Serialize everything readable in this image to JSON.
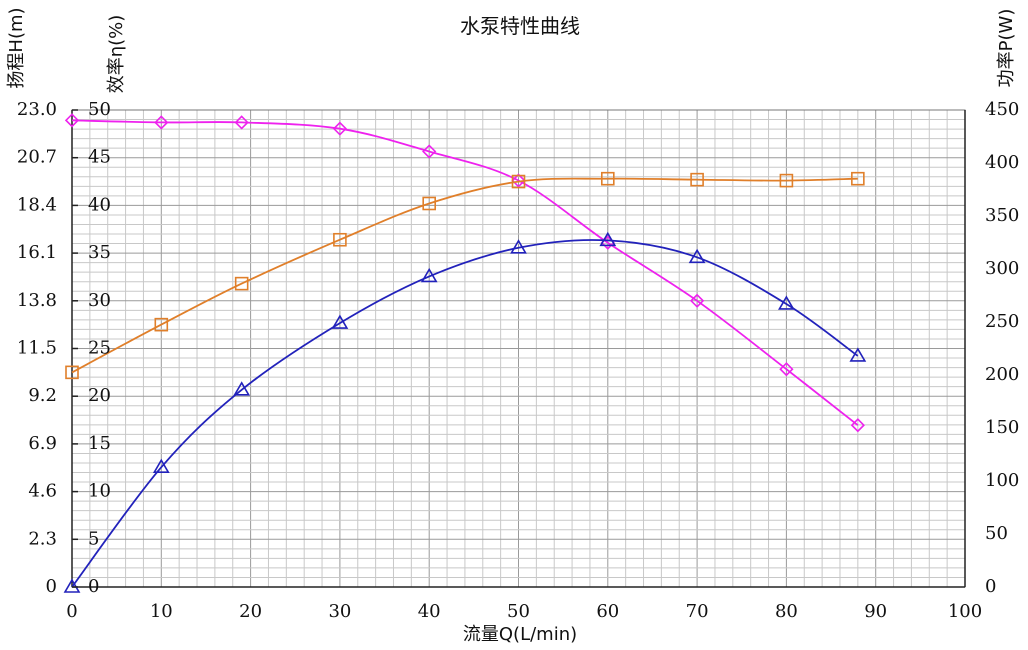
{
  "chart_data": {
    "type": "line",
    "title": "水泵特性曲线",
    "xlabel": "流量Q(L/min)",
    "ylabel_head": "扬程H(m)",
    "ylabel_eff": "效率η(%)",
    "ylabel_power": "功率P(W)",
    "xlim": [
      0,
      100
    ],
    "x_ticks": [
      "0",
      "10",
      "20",
      "30",
      "40",
      "50",
      "60",
      "70",
      "80",
      "90",
      "100"
    ],
    "head_axis": {
      "ylim": [
        0,
        23.0
      ],
      "ticks": [
        "0",
        "2.3",
        "4.6",
        "6.9",
        "9.2",
        "11.5",
        "13.8",
        "16.1",
        "18.4",
        "20.7",
        "23.0"
      ]
    },
    "eff_axis": {
      "ylim": [
        0,
        50
      ],
      "ticks": [
        "0",
        "5",
        "10",
        "15",
        "20",
        "25",
        "30",
        "35",
        "40",
        "45",
        "50"
      ]
    },
    "power_axis": {
      "ylim": [
        0,
        450
      ],
      "ticks": [
        "0",
        "50",
        "100",
        "150",
        "200",
        "250",
        "300",
        "350",
        "400",
        "450"
      ]
    },
    "grid": true,
    "series": [
      {
        "key": "head",
        "axis": "head",
        "color": "#ee22ee",
        "marker": "diamond",
        "x": [
          0,
          10,
          19,
          30,
          40,
          50,
          60,
          70,
          80,
          88
        ],
        "y": [
          22.5,
          22.4,
          22.4,
          22.1,
          21.0,
          19.6,
          16.6,
          13.8,
          10.5,
          7.8
        ]
      },
      {
        "key": "efficiency",
        "axis": "eff",
        "color": "#e07f2a",
        "marker": "square",
        "x": [
          0,
          10,
          19,
          30,
          40,
          50,
          60,
          70,
          80,
          88
        ],
        "y": [
          22.5,
          27.5,
          31.8,
          36.4,
          40.2,
          42.5,
          42.8,
          42.7,
          42.6,
          42.8
        ]
      },
      {
        "key": "power",
        "axis": "power",
        "color": "#2222bb",
        "marker": "triangle",
        "x": [
          0,
          10,
          19,
          30,
          40,
          50,
          60,
          70,
          80,
          88
        ],
        "y": [
          0,
          113,
          186,
          249,
          293,
          320,
          327,
          311,
          267,
          218
        ]
      }
    ]
  }
}
